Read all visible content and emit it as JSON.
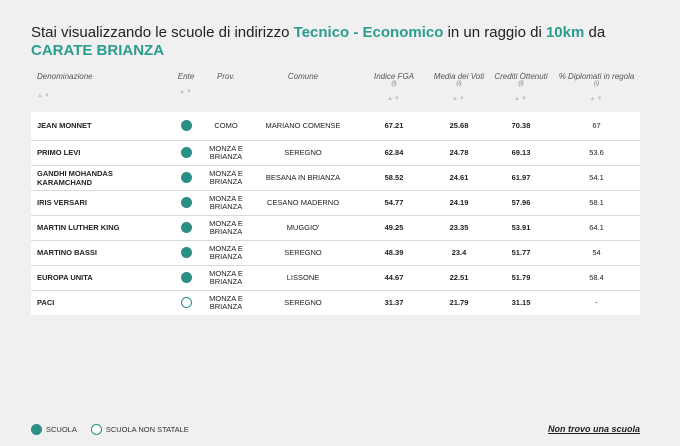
{
  "heading": {
    "prefix": "Stai visualizzando le scuole di indirizzo",
    "indirizzo": "Tecnico - Economico",
    "middle": "in un raggio di",
    "radius": "10km",
    "da": "da",
    "city": "CARATE BRIANZA"
  },
  "table": {
    "columns": [
      {
        "label": "Denominazione",
        "info": "",
        "sortable": true
      },
      {
        "label": "Ente",
        "info": "",
        "sortable": true
      },
      {
        "label": "Prov.",
        "info": "",
        "sortable": false
      },
      {
        "label": "Comune",
        "info": "",
        "sortable": false
      },
      {
        "label": "Indice FGA",
        "info": "(i)",
        "sortable": true
      },
      {
        "label": "Media dei Voti",
        "info": "(i)",
        "sortable": true
      },
      {
        "label": "Crediti Ottenuti",
        "info": "(i)",
        "sortable": true
      },
      {
        "label": "% Diplomati in regola",
        "info": "(i)",
        "sortable": true
      }
    ],
    "sort_glyph": "▲▼",
    "rows": [
      {
        "name": "JEAN MONNET",
        "ente": "scuola",
        "prov": "COMO",
        "comune": "MARIANO COMENSE",
        "fga": "67.21",
        "voti": "25.68",
        "crediti": "70.38",
        "diplomati": "67"
      },
      {
        "name": "PRIMO LEVI",
        "ente": "scuola",
        "prov": "MONZA E BRIANZA",
        "comune": "SEREGNO",
        "fga": "62.84",
        "voti": "24.78",
        "crediti": "69.13",
        "diplomati": "53.6"
      },
      {
        "name": "GANDHI MOHANDAS KARAMCHAND",
        "ente": "scuola",
        "prov": "MONZA E BRIANZA",
        "comune": "BESANA IN BRIANZA",
        "fga": "58.52",
        "voti": "24.61",
        "crediti": "61.97",
        "diplomati": "54.1"
      },
      {
        "name": "IRIS VERSARI",
        "ente": "scuola",
        "prov": "MONZA E BRIANZA",
        "comune": "CESANO MADERNO",
        "fga": "54.77",
        "voti": "24.19",
        "crediti": "57.96",
        "diplomati": "58.1"
      },
      {
        "name": "MARTIN LUTHER KING",
        "ente": "scuola",
        "prov": "MONZA E BRIANZA",
        "comune": "MUGGIO'",
        "fga": "49.25",
        "voti": "23.35",
        "crediti": "53.91",
        "diplomati": "64.1"
      },
      {
        "name": "MARTINO BASSI",
        "ente": "scuola",
        "prov": "MONZA E BRIANZA",
        "comune": "SEREGNO",
        "fga": "48.39",
        "voti": "23.4",
        "crediti": "51.77",
        "diplomati": "54"
      },
      {
        "name": "EUROPA UNITA",
        "ente": "scuola",
        "prov": "MONZA E BRIANZA",
        "comune": "LISSONE",
        "fga": "44.67",
        "voti": "22.51",
        "crediti": "51.79",
        "diplomati": "58.4"
      },
      {
        "name": "PACI",
        "ente": "non-statale",
        "prov": "MONZA E BRIANZA",
        "comune": "SEREGNO",
        "fga": "31.37",
        "voti": "21.79",
        "crediti": "31.15",
        "diplomati": "-"
      }
    ]
  },
  "legend": {
    "scuola": "SCUOLA",
    "non_statale": "SCUOLA NON STATALE"
  },
  "link_not_found": "Non trovo una scuola",
  "colors": {
    "accent": "#2a9d8f",
    "dot": "#2a8f87",
    "background": "#f0f0f0"
  }
}
